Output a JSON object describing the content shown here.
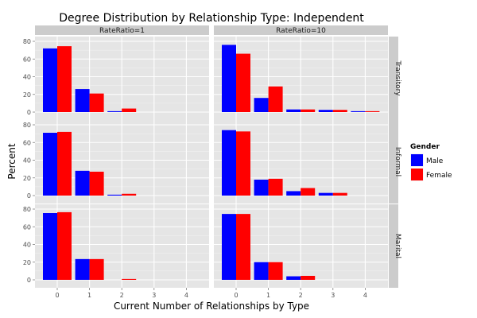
{
  "chart_data": {
    "type": "bar",
    "title": "Degree Distribution by Relationship Type: Independent",
    "xlabel": "Current Number of Relationships by Type",
    "ylabel": "Percent",
    "categories": [
      "0",
      "1",
      "2",
      "3",
      "4"
    ],
    "ylim": [
      0,
      80
    ],
    "yticks": [
      "0",
      "20",
      "40",
      "60",
      "80"
    ],
    "grid": true,
    "legend": {
      "title": "Gender",
      "position": "right",
      "entries": [
        {
          "name": "Male",
          "color": "#0000ff"
        },
        {
          "name": "Female",
          "color": "#ff0000"
        }
      ]
    },
    "facet_columns": [
      "RateRatio=1",
      "RateRatio=10"
    ],
    "facet_rows": [
      "Transitory",
      "Informal",
      "Marital"
    ],
    "panels": [
      {
        "column": "RateRatio=1",
        "row": "Transitory",
        "series": [
          {
            "name": "Male",
            "values": [
              72,
              26,
              1,
              0,
              0
            ]
          },
          {
            "name": "Female",
            "values": [
              74.5,
              21,
              4,
              0,
              0
            ]
          }
        ]
      },
      {
        "column": "RateRatio=10",
        "row": "Transitory",
        "series": [
          {
            "name": "Male",
            "values": [
              76,
              16,
              3,
              2.5,
              1
            ]
          },
          {
            "name": "Female",
            "values": [
              66,
              29,
              3,
              2.5,
              1
            ]
          }
        ]
      },
      {
        "column": "RateRatio=1",
        "row": "Informal",
        "series": [
          {
            "name": "Male",
            "values": [
              71,
              28,
              1,
              0,
              0
            ]
          },
          {
            "name": "Female",
            "values": [
              72,
              27,
              2,
              0,
              0
            ]
          }
        ]
      },
      {
        "column": "RateRatio=10",
        "row": "Informal",
        "series": [
          {
            "name": "Male",
            "values": [
              74,
              18,
              5,
              3,
              0
            ]
          },
          {
            "name": "Female",
            "values": [
              72.5,
              19,
              8.5,
              3,
              0
            ]
          }
        ]
      },
      {
        "column": "RateRatio=1",
        "row": "Marital",
        "series": [
          {
            "name": "Male",
            "values": [
              75.5,
              23.5,
              0,
              0,
              0
            ]
          },
          {
            "name": "Female",
            "values": [
              76.5,
              23.5,
              1,
              0,
              0
            ]
          }
        ]
      },
      {
        "column": "RateRatio=10",
        "row": "Marital",
        "series": [
          {
            "name": "Male",
            "values": [
              74.5,
              20,
              4,
              0,
              0
            ]
          },
          {
            "name": "Female",
            "values": [
              74.5,
              20,
              4.5,
              0,
              0
            ]
          }
        ]
      }
    ]
  }
}
